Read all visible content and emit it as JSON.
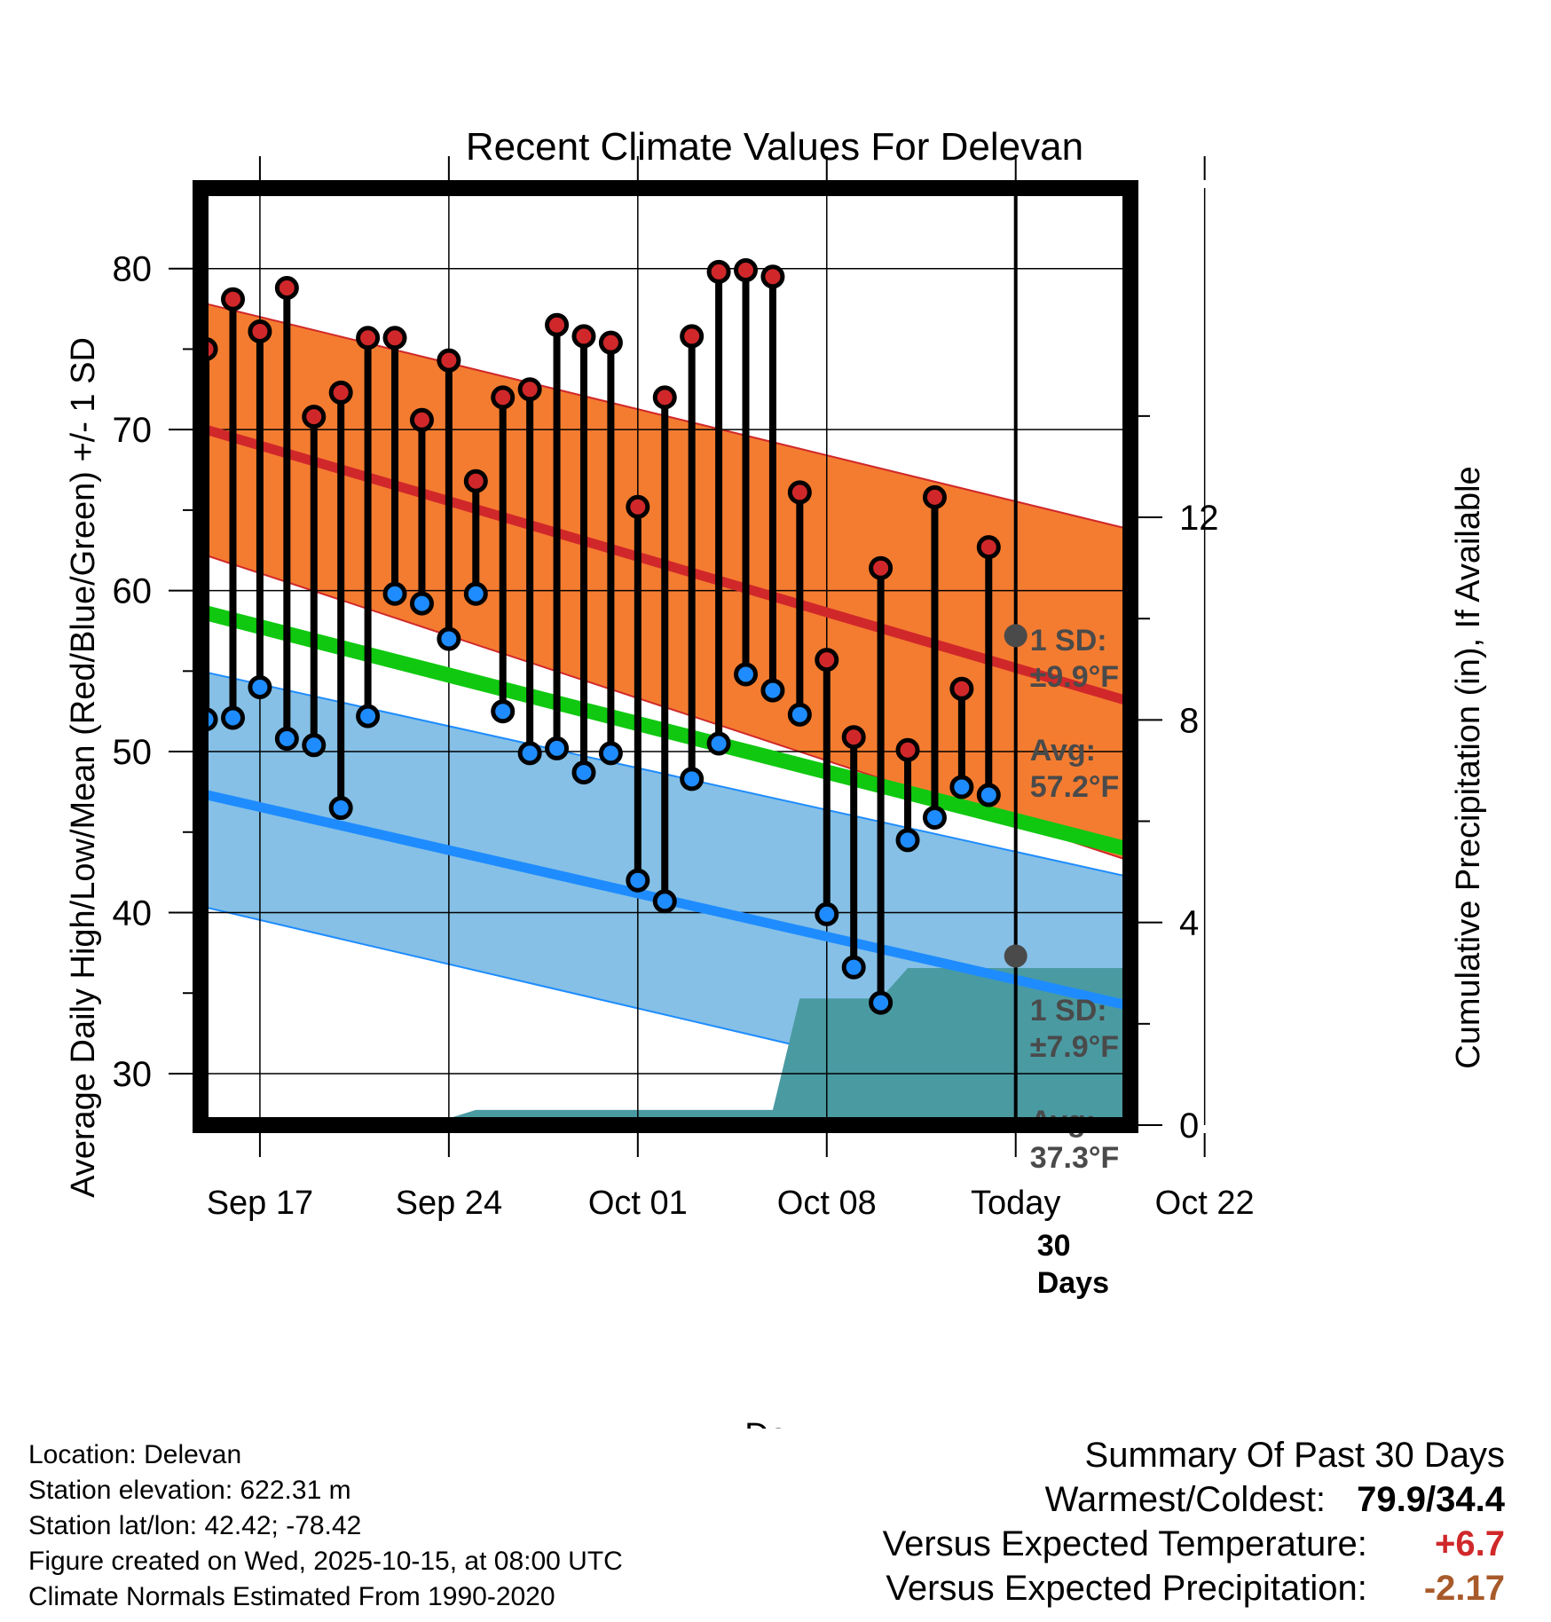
{
  "chart_data": {
    "type": "line",
    "title": "Recent Climate Values For Delevan",
    "xlabel": "Day",
    "ylabel": "Average Daily High/Low/Mean (Red/Blue/Green) +/- 1 SD",
    "y2label": "Cumulative Precipitation (in), If Available",
    "ylim": [
      26.8,
      85
    ],
    "y_ticks": [
      30,
      40,
      50,
      60,
      70,
      80
    ],
    "y2lim": [
      0,
      18.5
    ],
    "y2_ticks": [
      0,
      4,
      8,
      12
    ],
    "x_range_days_from_sep14": [
      0.8,
      35.25
    ],
    "x_ticks": [
      {
        "label": "Sep 17",
        "day": 3
      },
      {
        "label": "Sep 24",
        "day": 10
      },
      {
        "label": "Oct 01",
        "day": 17
      },
      {
        "label": "Oct 08",
        "day": 24
      },
      {
        "label": "Today",
        "day": 31
      },
      {
        "label": "Oct 22",
        "day": 38
      }
    ],
    "grid": true,
    "normals": {
      "high_avg": {
        "start": 70.1,
        "end": 53.1,
        "color": "#d0282a"
      },
      "high_sd_band": {
        "upper_start": 77.9,
        "upper_end": 63.8,
        "lower_start": 62.3,
        "lower_end": 43.2,
        "color": "#f47c30"
      },
      "mean": {
        "start": 58.7,
        "end": 43.9,
        "color": "#10c810"
      },
      "low_avg": {
        "start": 47.4,
        "end": 34.2,
        "color": "#1e8cff"
      },
      "low_sd_band": {
        "upper_start": 55.0,
        "upper_end": 42.2,
        "lower_start": 40.4,
        "lower_end": 26.9,
        "color": "#86c0e6"
      }
    },
    "series": [
      {
        "name": "Daily High/Low",
        "days": [
          1,
          2,
          3,
          4,
          5,
          6,
          7,
          8,
          9,
          10,
          11,
          12,
          13,
          14,
          15,
          16,
          17,
          18,
          19,
          20,
          21,
          22,
          23,
          24,
          25,
          26,
          27,
          28,
          29,
          30
        ],
        "high": [
          75.0,
          78.1,
          76.1,
          78.8,
          70.8,
          72.3,
          75.7,
          75.7,
          70.6,
          74.3,
          66.8,
          72.0,
          72.5,
          76.5,
          75.8,
          75.4,
          65.2,
          72.0,
          75.8,
          79.8,
          79.9,
          79.5,
          66.1,
          55.7,
          50.9,
          61.4,
          50.1,
          65.8,
          53.9,
          62.7
        ],
        "low": [
          52.0,
          52.1,
          54.0,
          50.8,
          50.4,
          46.5,
          52.2,
          59.8,
          59.2,
          57.0,
          59.8,
          52.5,
          49.9,
          50.2,
          48.7,
          49.9,
          42.0,
          40.7,
          48.3,
          50.5,
          54.8,
          53.8,
          52.3,
          39.9,
          36.6,
          34.4,
          44.5,
          45.9,
          47.8,
          47.3
        ]
      }
    ],
    "precipitation": {
      "color": "#4a9aa2",
      "points": [
        [
          0.8,
          0
        ],
        [
          9.2,
          0
        ],
        [
          11.0,
          0.3
        ],
        [
          22.0,
          0.3
        ],
        [
          23.0,
          2.5
        ],
        [
          26.0,
          2.5
        ],
        [
          27.0,
          3.1
        ],
        [
          35.25,
          3.1
        ]
      ]
    },
    "annotations": {
      "high_sd_label": "1 SD:",
      "high_sd_value": "±9.9°F",
      "high_avg_label": "Avg:",
      "high_avg_value": "57.2°F",
      "high_today_value": 57.2,
      "low_sd_label": "1 SD:",
      "low_sd_value": "±7.9°F",
      "low_avg_label": "Avg:",
      "low_avg_value": "37.3°F",
      "low_today_value": 37.3,
      "precip_label_1": "30",
      "precip_label_2": "Days"
    }
  },
  "footer": {
    "location": "Location: Delevan",
    "elevation": "Station elevation: 622.31 m",
    "latlon": "Station lat/lon: 42.42; -78.42",
    "created": "Figure created on Wed, 2025-10-15, at 08:00 UTC",
    "normals": "Climate Normals Estimated From 1990-2020"
  },
  "summary": {
    "title": "Summary Of Past 30 Days",
    "warmest_label": "Warmest/Coldest:",
    "warmest_value": "79.9/34.4",
    "temp_label": "Versus Expected Temperature:",
    "temp_value": "+6.7",
    "temp_color": "#d0282a",
    "precip_label": "Versus Expected Precipitation:",
    "precip_value": "-2.17",
    "precip_color": "#a85a2a"
  }
}
